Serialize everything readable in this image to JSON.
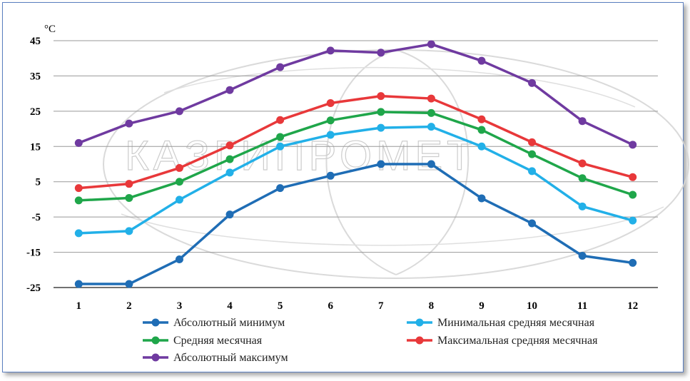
{
  "watermark_text": "КАЗГИПРОМЕТ",
  "chart_data": {
    "type": "line",
    "unit_label": "°C",
    "categories": [
      "1",
      "2",
      "3",
      "4",
      "5",
      "6",
      "7",
      "8",
      "9",
      "10",
      "11",
      "12"
    ],
    "ylim": [
      -25,
      45
    ],
    "yticks": [
      45,
      35,
      25,
      15,
      5,
      -5,
      -15,
      -25
    ],
    "grid": "horizontal",
    "legend_position": "bottom",
    "series": [
      {
        "name": "Абсолютный минимум",
        "color": "#1f6db5",
        "values": [
          -24,
          -24,
          -17,
          -4.3,
          3.2,
          6.7,
          10,
          10,
          0.3,
          -6.8,
          -16,
          -18
        ]
      },
      {
        "name": "Минимальная средняя месячная",
        "color": "#22b0e8",
        "values": [
          -9.6,
          -9,
          -0.1,
          7.6,
          15,
          18.3,
          20.3,
          20.6,
          15,
          8,
          -2,
          -6
        ]
      },
      {
        "name": "Средняя месячная",
        "color": "#1fa64a",
        "values": [
          -0.3,
          0.4,
          5,
          11.4,
          17.7,
          22.4,
          24.8,
          24.5,
          19.7,
          12.8,
          6,
          1.3
        ]
      },
      {
        "name": "Максимальная средняя месячная",
        "color": "#e8383a",
        "values": [
          3.2,
          4.4,
          8.9,
          15.3,
          22.5,
          27.3,
          29.3,
          28.6,
          22.7,
          16.2,
          10.2,
          6.3
        ]
      },
      {
        "name": "Абсолютный максимум",
        "color": "#6f3aa0",
        "values": [
          16,
          21.5,
          25,
          31,
          37.5,
          42.2,
          41.6,
          44,
          39.3,
          33,
          22.2,
          15.5
        ]
      }
    ]
  }
}
